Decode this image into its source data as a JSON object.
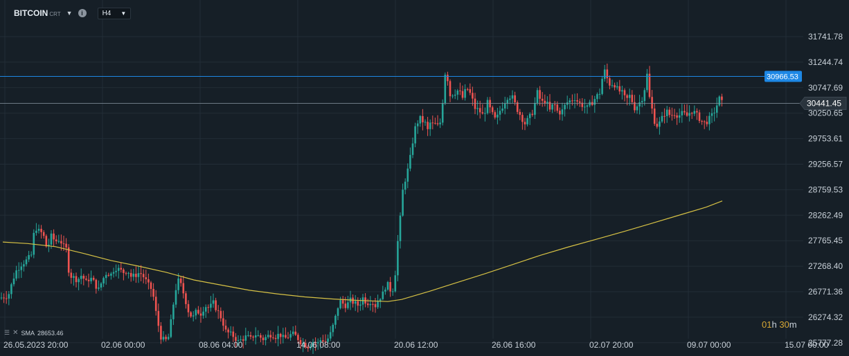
{
  "toolbar": {
    "symbol": "BITCOIN",
    "symbol_suffix": "CRT",
    "timeframe": "H4"
  },
  "indicator": {
    "label": "SMA",
    "value": "28653.46"
  },
  "timer": {
    "h": "01",
    "h_unit": "h",
    "m": "30",
    "m_unit": "m"
  },
  "colors": {
    "background": "#161f27",
    "grid": "#222d37",
    "up": "#26a69a",
    "down": "#ef5350",
    "sma": "#d7c245",
    "level_line": "#1e88e5",
    "price_line": "#8b98a5"
  },
  "chart_data": {
    "type": "candlestick",
    "y_ticks": [
      "31741.78",
      "31244.74",
      "30747.69",
      "30250.65",
      "29753.61",
      "29256.57",
      "28759.53",
      "28262.49",
      "27765.45",
      "27268.40",
      "26771.36",
      "26274.32",
      "25777.28"
    ],
    "x_ticks": [
      "26.05.2023  20:00",
      "02.06  00:00",
      "08.06  04:00",
      "14.06  08:00",
      "20.06  12:00",
      "26.06  16:00",
      "02.07  20:00",
      "09.07  00:00",
      "15.07  00:00"
    ],
    "ylim": [
      25700,
      32100
    ],
    "level_line": {
      "value": 30966.53,
      "label": "30966.53"
    },
    "current_price": {
      "value": 30441.45,
      "label": "30441.45"
    },
    "sma": {
      "label": "SMA",
      "value": 28653.46
    },
    "close_path": [
      [
        0,
        26650
      ],
      [
        12,
        26700
      ],
      [
        22,
        27150
      ],
      [
        30,
        27300
      ],
      [
        40,
        27400
      ],
      [
        46,
        27500
      ],
      [
        50,
        28050
      ],
      [
        56,
        27950
      ],
      [
        62,
        27900
      ],
      [
        68,
        27600
      ],
      [
        74,
        27850
      ],
      [
        80,
        27750
      ],
      [
        86,
        27800
      ],
      [
        92,
        27650
      ],
      [
        96,
        27600
      ],
      [
        100,
        27100
      ],
      [
        106,
        27050
      ],
      [
        112,
        27000
      ],
      [
        118,
        27100
      ],
      [
        124,
        26950
      ],
      [
        130,
        27050
      ],
      [
        136,
        26950
      ],
      [
        142,
        26800
      ],
      [
        148,
        27000
      ],
      [
        154,
        27150
      ],
      [
        160,
        27100
      ],
      [
        166,
        27250
      ],
      [
        172,
        27200
      ],
      [
        178,
        27150
      ],
      [
        184,
        27200
      ],
      [
        190,
        27050
      ],
      [
        196,
        27100
      ],
      [
        202,
        27150
      ],
      [
        208,
        27050
      ],
      [
        214,
        26900
      ],
      [
        220,
        26800
      ],
      [
        226,
        26300
      ],
      [
        232,
        25900
      ],
      [
        238,
        25800
      ],
      [
        244,
        25900
      ],
      [
        250,
        26500
      ],
      [
        256,
        27000
      ],
      [
        260,
        26950
      ],
      [
        266,
        26700
      ],
      [
        272,
        26400
      ],
      [
        278,
        26250
      ],
      [
        284,
        26400
      ],
      [
        290,
        26350
      ],
      [
        296,
        26500
      ],
      [
        302,
        26450
      ],
      [
        308,
        26550
      ],
      [
        314,
        26400
      ],
      [
        320,
        26250
      ],
      [
        326,
        26000
      ],
      [
        332,
        25950
      ],
      [
        338,
        25900
      ],
      [
        344,
        25800
      ],
      [
        350,
        25850
      ],
      [
        356,
        25900
      ],
      [
        362,
        25850
      ],
      [
        368,
        25950
      ],
      [
        374,
        25900
      ],
      [
        380,
        25850
      ],
      [
        386,
        25900
      ],
      [
        392,
        25950
      ],
      [
        398,
        25900
      ],
      [
        404,
        25950
      ],
      [
        410,
        25850
      ],
      [
        416,
        25900
      ],
      [
        422,
        25950
      ],
      [
        428,
        25900
      ],
      [
        434,
        25800
      ],
      [
        440,
        25750
      ],
      [
        446,
        25700
      ],
      [
        452,
        25800
      ],
      [
        458,
        25750
      ],
      [
        464,
        25850
      ],
      [
        470,
        25800
      ],
      [
        476,
        25900
      ],
      [
        482,
        26150
      ],
      [
        486,
        26350
      ],
      [
        490,
        26600
      ],
      [
        494,
        26550
      ],
      [
        500,
        26500
      ],
      [
        506,
        26600
      ],
      [
        512,
        26550
      ],
      [
        518,
        26500
      ],
      [
        524,
        26650
      ],
      [
        530,
        26550
      ],
      [
        536,
        26600
      ],
      [
        542,
        26500
      ],
      [
        548,
        26650
      ],
      [
        554,
        26750
      ],
      [
        558,
        26950
      ],
      [
        562,
        26850
      ],
      [
        566,
        26750
      ],
      [
        570,
        27000
      ],
      [
        574,
        27700
      ],
      [
        578,
        28200
      ],
      [
        582,
        28800
      ],
      [
        586,
        29000
      ],
      [
        590,
        29200
      ],
      [
        594,
        29500
      ],
      [
        598,
        29900
      ],
      [
        602,
        30050
      ],
      [
        606,
        30150
      ],
      [
        610,
        30100
      ],
      [
        614,
        30050
      ],
      [
        618,
        29900
      ],
      [
        622,
        30100
      ],
      [
        626,
        30000
      ],
      [
        630,
        30050
      ],
      [
        634,
        29950
      ],
      [
        638,
        30250
      ],
      [
        642,
        31050
      ],
      [
        646,
        30950
      ],
      [
        650,
        30600
      ],
      [
        656,
        30650
      ],
      [
        662,
        30700
      ],
      [
        668,
        30550
      ],
      [
        674,
        30750
      ],
      [
        680,
        30600
      ],
      [
        686,
        30350
      ],
      [
        692,
        30300
      ],
      [
        698,
        30200
      ],
      [
        704,
        30450
      ],
      [
        710,
        30250
      ],
      [
        716,
        30100
      ],
      [
        722,
        30300
      ],
      [
        728,
        30450
      ],
      [
        734,
        30600
      ],
      [
        740,
        30550
      ],
      [
        746,
        30350
      ],
      [
        752,
        30200
      ],
      [
        758,
        30050
      ],
      [
        764,
        30150
      ],
      [
        770,
        30300
      ],
      [
        776,
        30650
      ],
      [
        782,
        30450
      ],
      [
        788,
        30500
      ],
      [
        794,
        30300
      ],
      [
        800,
        30450
      ],
      [
        806,
        30250
      ],
      [
        812,
        30300
      ],
      [
        818,
        30450
      ],
      [
        824,
        30500
      ],
      [
        830,
        30550
      ],
      [
        836,
        30450
      ],
      [
        842,
        30400
      ],
      [
        848,
        30350
      ],
      [
        854,
        30450
      ],
      [
        860,
        30550
      ],
      [
        866,
        30650
      ],
      [
        870,
        30950
      ],
      [
        874,
        31100
      ],
      [
        878,
        30850
      ],
      [
        882,
        30800
      ],
      [
        886,
        30850
      ],
      [
        892,
        30700
      ],
      [
        898,
        30650
      ],
      [
        904,
        30500
      ],
      [
        910,
        30600
      ],
      [
        916,
        30350
      ],
      [
        920,
        30400
      ],
      [
        926,
        30500
      ],
      [
        930,
        30650
      ],
      [
        934,
        31050
      ],
      [
        938,
        30550
      ],
      [
        942,
        30300
      ],
      [
        946,
        30050
      ],
      [
        950,
        30000
      ],
      [
        956,
        30150
      ],
      [
        962,
        30300
      ],
      [
        968,
        30200
      ],
      [
        974,
        30250
      ],
      [
        980,
        30200
      ],
      [
        986,
        30250
      ],
      [
        992,
        30200
      ],
      [
        998,
        30300
      ],
      [
        1004,
        30250
      ],
      [
        1010,
        30150
      ],
      [
        1016,
        30050
      ],
      [
        1022,
        30100
      ],
      [
        1028,
        30200
      ],
      [
        1034,
        30350
      ],
      [
        1038,
        30550
      ],
      [
        1043,
        30441
      ]
    ],
    "sma_path": [
      [
        4,
        27740
      ],
      [
        40,
        27710
      ],
      [
        80,
        27650
      ],
      [
        120,
        27520
      ],
      [
        160,
        27380
      ],
      [
        200,
        27270
      ],
      [
        240,
        27150
      ],
      [
        280,
        27000
      ],
      [
        320,
        26900
      ],
      [
        360,
        26800
      ],
      [
        400,
        26730
      ],
      [
        440,
        26670
      ],
      [
        480,
        26630
      ],
      [
        520,
        26600
      ],
      [
        560,
        26580
      ],
      [
        580,
        26620
      ],
      [
        620,
        26780
      ],
      [
        660,
        26950
      ],
      [
        700,
        27120
      ],
      [
        740,
        27300
      ],
      [
        780,
        27480
      ],
      [
        820,
        27640
      ],
      [
        860,
        27790
      ],
      [
        900,
        27940
      ],
      [
        940,
        28100
      ],
      [
        980,
        28260
      ],
      [
        1020,
        28420
      ],
      [
        1043,
        28540
      ]
    ]
  }
}
